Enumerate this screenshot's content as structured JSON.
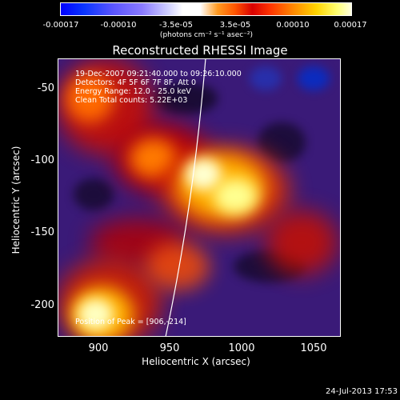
{
  "colorbar": {
    "ticks": [
      "-0.00017",
      "-0.00010",
      "-3.5e-05",
      "3.5e-05",
      "0.00010",
      "0.00017"
    ],
    "units": "(photons cm⁻² s⁻¹ asec⁻²)"
  },
  "title": "Reconstructed RHESSI Image",
  "info": {
    "time_range": "19-Dec-2007 09:21:40.000 to 09:26:10.000",
    "detectors": "Detectors: 4F 5F 6F 7F 8F, Att 0",
    "energy_range": "Energy Range: 12.0 - 25.0 keV",
    "method": "Clean    Total counts: 5.22E+03",
    "peak": "Position of Peak = [906,-214]"
  },
  "axes": {
    "xlabel": "Heliocentric X (arcsec)",
    "ylabel": "Heliocentric Y (arcsec)",
    "xticks": [
      "900",
      "950",
      "1000",
      "1050"
    ],
    "yticks": [
      "-50",
      "-100",
      "-150",
      "-200"
    ]
  },
  "timestamp": "24-Jul-2013 17:53",
  "colors": {
    "background": "#000000",
    "negative": "#3a1a78",
    "peak": "#ffffc0"
  }
}
